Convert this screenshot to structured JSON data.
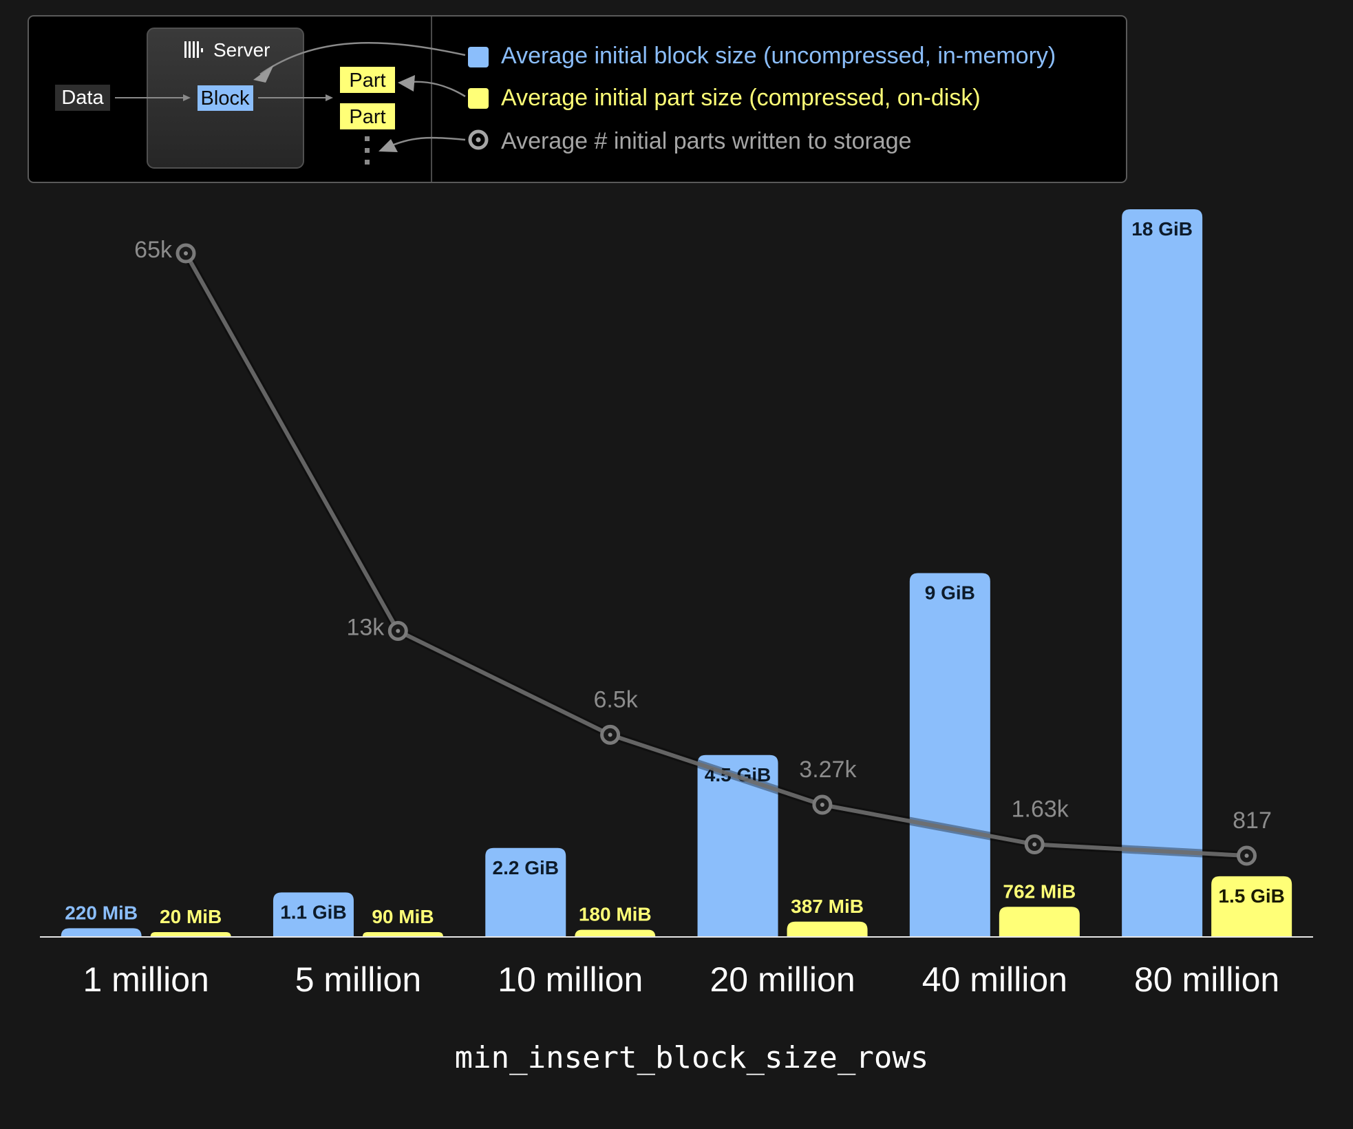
{
  "legend": {
    "diagram": {
      "data_label": "Data",
      "server_label": "Server",
      "block_label": "Block",
      "part_label_1": "Part",
      "part_label_2": "Part"
    },
    "items": [
      {
        "label": "Average initial block size (uncompressed, in-memory)",
        "color": "#8BBEFB",
        "marker": "square"
      },
      {
        "label": "Average initial part size (compressed, on-disk)",
        "color": "#FFFF77",
        "marker": "square"
      },
      {
        "label": "Average # initial parts written to storage",
        "color": "#A6A6A6",
        "marker": "circle"
      }
    ]
  },
  "chart_data": {
    "type": "bar",
    "categories": [
      "1 million",
      "5 million",
      "10 million",
      "20 million",
      "40 million",
      "80 million"
    ],
    "xlabel": "min_insert_block_size_rows",
    "series": [
      {
        "name": "Average initial block size (uncompressed, in-memory)",
        "type": "bar",
        "color": "#8BBEFB",
        "values_gib": [
          0.215,
          1.1,
          2.2,
          4.5,
          9,
          18
        ],
        "labels": [
          "220 MiB",
          "1.1 GiB",
          "2.2 GiB",
          "4.5 GiB",
          "9 GiB",
          "18 GiB"
        ]
      },
      {
        "name": "Average initial part size (compressed, on-disk)",
        "type": "bar",
        "color": "#FFFF77",
        "values_gib": [
          0.02,
          0.088,
          0.176,
          0.378,
          0.744,
          1.5
        ],
        "labels": [
          "20 MiB",
          "90 MiB",
          "180 MiB",
          "387 MiB",
          "762 MiB",
          "1.5 GiB"
        ]
      },
      {
        "name": "Average # initial parts written to storage",
        "type": "line",
        "color": "#6E6E6E",
        "values": [
          65000,
          13000,
          6500,
          3270,
          1630,
          817
        ],
        "labels": [
          "65k",
          "13k",
          "6.5k",
          "3.27k",
          "1.63k",
          "817"
        ]
      }
    ]
  }
}
